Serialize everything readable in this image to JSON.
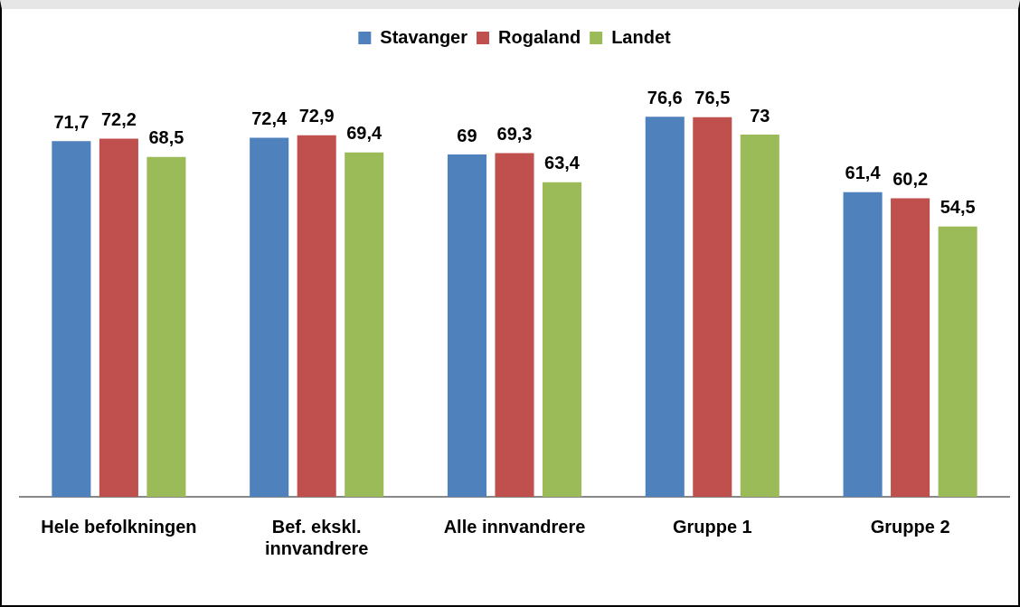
{
  "chart_data": {
    "type": "bar",
    "categories": [
      "Hele befolkningen",
      "Bef. ekskl. innvandrere",
      "Alle innvandrere",
      "Gruppe 1",
      "Gruppe 2"
    ],
    "series": [
      {
        "name": "Stavanger",
        "color": "#4f81bd",
        "values": [
          71.7,
          72.4,
          69,
          76.6,
          61.4
        ],
        "value_labels": [
          "71,7",
          "72,4",
          "69",
          "76,6",
          "61,4"
        ]
      },
      {
        "name": "Rogaland",
        "color": "#c0504d",
        "values": [
          72.2,
          72.9,
          69.3,
          76.5,
          60.2
        ],
        "value_labels": [
          "72,2",
          "72,9",
          "69,3",
          "76,5",
          "60,2"
        ]
      },
      {
        "name": "Landet",
        "color": "#9bbb59",
        "values": [
          68.5,
          69.4,
          63.4,
          73,
          54.5
        ],
        "value_labels": [
          "68,5",
          "69,4",
          "63,4",
          "73",
          "54,5"
        ]
      }
    ],
    "legend": "top",
    "grid": false
  }
}
